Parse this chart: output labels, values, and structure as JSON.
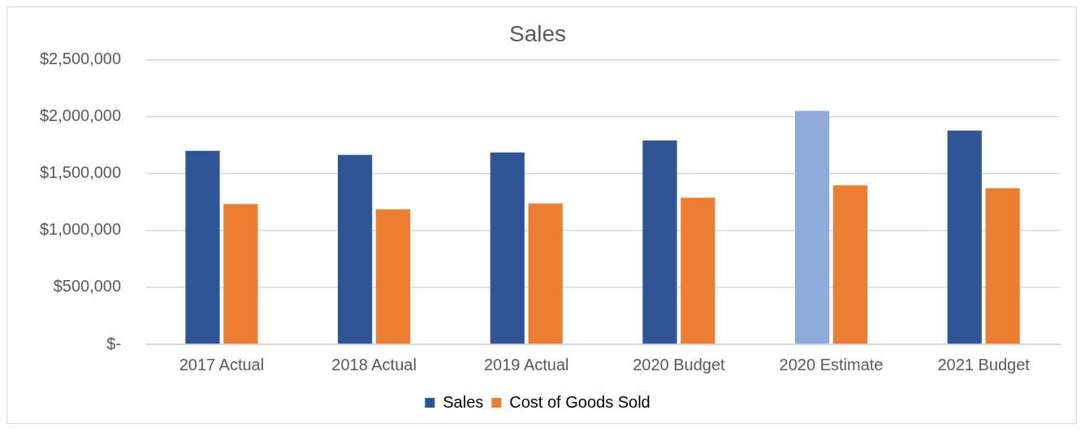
{
  "chart_data": {
    "type": "bar",
    "title": "Sales",
    "categories": [
      "2017 Actual",
      "2018 Actual",
      "2019 Actual",
      "2020 Budget",
      "2020 Estimate",
      "2021 Budget"
    ],
    "series": [
      {
        "name": "Sales",
        "color": "#2f5597",
        "colors": [
          "#2f5597",
          "#2f5597",
          "#2f5597",
          "#2f5597",
          "#8faadc",
          "#2f5597"
        ],
        "values": [
          1700000,
          1665000,
          1685000,
          1790000,
          2052000,
          1878000
        ]
      },
      {
        "name": "Cost of Goods Sold",
        "color": "#ed7d31",
        "values": [
          1233000,
          1186000,
          1238000,
          1288000,
          1397000,
          1371000
        ]
      }
    ],
    "ylim": [
      0,
      2500000
    ],
    "yticks": [
      {
        "value": 0,
        "label": "$-"
      },
      {
        "value": 500000,
        "label": "$500,000"
      },
      {
        "value": 1000000,
        "label": "$1,000,000"
      },
      {
        "value": 1500000,
        "label": "$1,500,000"
      },
      {
        "value": 2000000,
        "label": "$2,000,000"
      },
      {
        "value": 2500000,
        "label": "$2,500,000"
      }
    ],
    "grid": "y",
    "legend": "bottom"
  }
}
